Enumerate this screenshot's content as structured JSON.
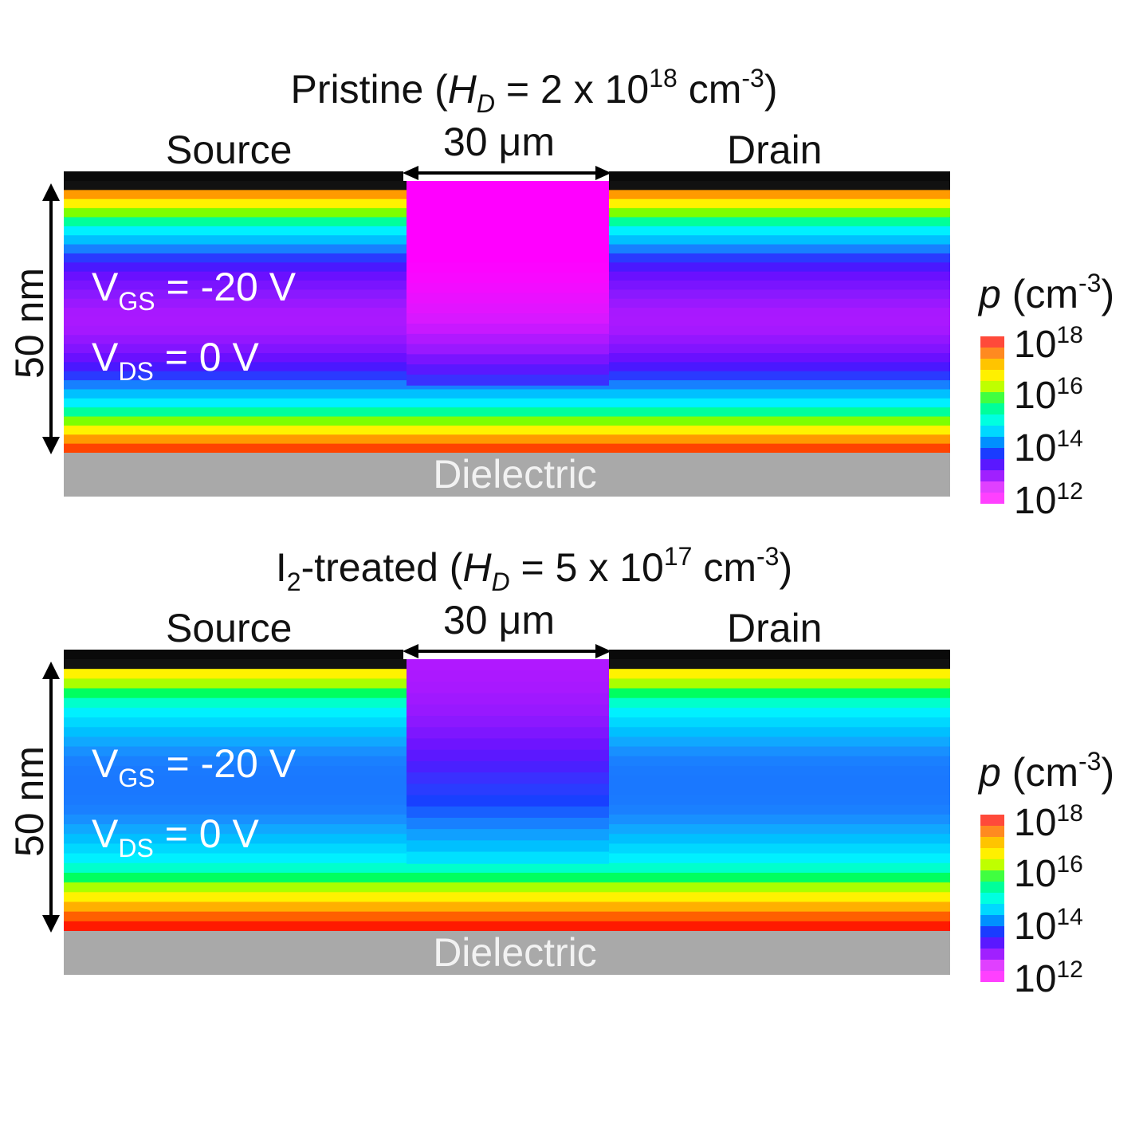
{
  "panels": [
    {
      "title": {
        "prefix": "Pristine (",
        "var": "H",
        "var_sub": "D",
        "eq": " = 2 x 10",
        "exp": "18",
        "unit": " cm",
        "unit_exp": "-3",
        "suffix": ")"
      },
      "source": "Source",
      "drain": "Drain",
      "channel_width": "30 μm",
      "thickness": "50 nm",
      "dielectric": "Dielectric",
      "vgs": {
        "v": "V",
        "sub": "GS",
        "rest": " = -20 V"
      },
      "vds": {
        "v": "V",
        "sub": "DS",
        "rest": " = 0 V"
      },
      "colorbar": {
        "var": "p",
        "unit": " (cm",
        "unit_exp": "-3",
        "close": ")",
        "ticks": [
          {
            "base": "10",
            "exp": "18"
          },
          {
            "base": "10",
            "exp": "16"
          },
          {
            "base": "10",
            "exp": "14"
          },
          {
            "base": "10",
            "exp": "12"
          }
        ]
      },
      "side_profile": [
        "#111111",
        "#ff9a00",
        "#fff200",
        "#7dff00",
        "#00ff9a",
        "#00f0ff",
        "#00c0ff",
        "#1780ff",
        "#2a3aff",
        "#4a18ff",
        "#6a10ff",
        "#7a14ff",
        "#8a18ff",
        "#9a18ff",
        "#a818ff",
        "#aa18ff",
        "#a518ff",
        "#9416ff",
        "#8214ff",
        "#6a10ff",
        "#4a18ff",
        "#2a3aff",
        "#1780ff",
        "#00c0ff",
        "#00f0ff",
        "#00ff9a",
        "#7dff00",
        "#fff200",
        "#ff9a00",
        "#ff4400"
      ],
      "center_profile": [
        "#ff00ff",
        "#ff00ff",
        "#ff00ff",
        "#ff00ff",
        "#ff00ff",
        "#ff00ff",
        "#ff00ff",
        "#ff00ff",
        "#fc04ff",
        "#f808ff",
        "#f20cff",
        "#ea10ff",
        "#e214ff",
        "#d818ff",
        "#c818ff",
        "#b018ff",
        "#9a18ff",
        "#7a14ff",
        "#5a18ff",
        "#3a30ff"
      ],
      "center_extent": 0.75
    },
    {
      "title": {
        "prefix": "I",
        "prefix_sub": "2",
        "prefix2": "-treated (",
        "var": "H",
        "var_sub": "D",
        "eq": " = 5 x 10",
        "exp": "17",
        "unit": " cm",
        "unit_exp": "-3",
        "suffix": ")"
      },
      "source": "Source",
      "drain": "Drain",
      "channel_width": "30 μm",
      "thickness": "50 nm",
      "dielectric": "Dielectric",
      "vgs": {
        "v": "V",
        "sub": "GS",
        "rest": " = -20 V"
      },
      "vds": {
        "v": "V",
        "sub": "DS",
        "rest": " = 0 V"
      },
      "colorbar": {
        "var": "p",
        "unit": " (cm",
        "unit_exp": "-3",
        "close": ")",
        "ticks": [
          {
            "base": "10",
            "exp": "18"
          },
          {
            "base": "10",
            "exp": "16"
          },
          {
            "base": "10",
            "exp": "14"
          },
          {
            "base": "10",
            "exp": "12"
          }
        ]
      },
      "side_profile": [
        "#111111",
        "#fff200",
        "#aaff00",
        "#00ff60",
        "#00ffcc",
        "#00f0ff",
        "#00d8ff",
        "#00c0ff",
        "#10a8ff",
        "#1890ff",
        "#1a80ff",
        "#1a7aff",
        "#1a78ff",
        "#1a78ff",
        "#1a7aff",
        "#1a80ff",
        "#1890ff",
        "#10a8ff",
        "#00c0ff",
        "#00d8ff",
        "#00f0ff",
        "#00ffcc",
        "#00ff60",
        "#aaff00",
        "#fff200",
        "#ffb000",
        "#ff6000",
        "#ff1a00"
      ],
      "center_profile": [
        "#b018ff",
        "#ac18ff",
        "#a818ff",
        "#a018ff",
        "#9818ff",
        "#8c18ff",
        "#7e16ff",
        "#6e14ff",
        "#5c18ff",
        "#4a20ff",
        "#3a30ff",
        "#2a3cff",
        "#1840ff",
        "#1860ff",
        "#1880ff",
        "#10a0ff",
        "#00c0ff",
        "#00e0ff"
      ],
      "center_extent": 0.75
    }
  ],
  "colorbar_colors": [
    "#ff4a3a",
    "#ff8a20",
    "#ffc400",
    "#fff000",
    "#bfff00",
    "#40ff40",
    "#00ff9a",
    "#00ffe0",
    "#00d8ff",
    "#0090ff",
    "#1a3cff",
    "#5a18ff",
    "#a020ff",
    "#e040ff",
    "#ff40ff"
  ]
}
